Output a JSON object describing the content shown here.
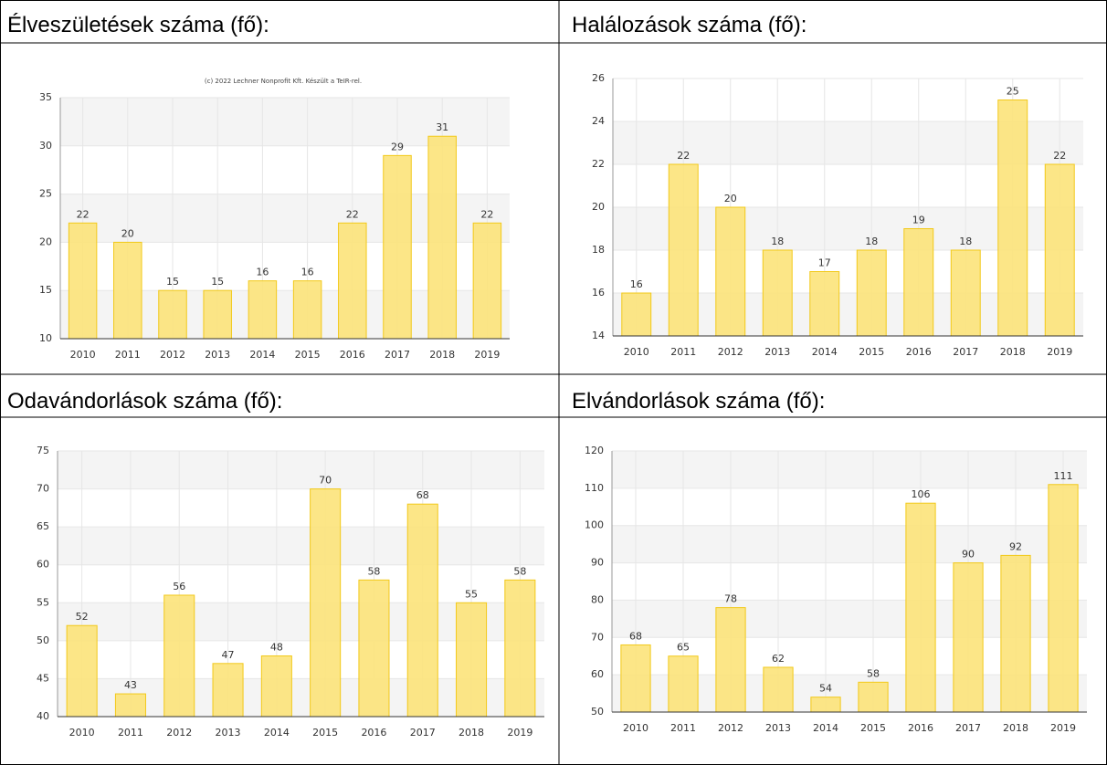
{
  "chart_data": [
    {
      "type": "bar",
      "title": "Élveszületések száma (fő):",
      "annotation": "(c) 2022 Lechner Nonprofit Kft. Készült a TeIR-rel.",
      "categories": [
        "2010",
        "2011",
        "2012",
        "2013",
        "2014",
        "2015",
        "2016",
        "2017",
        "2018",
        "2019"
      ],
      "values": [
        22,
        20,
        15,
        15,
        16,
        16,
        22,
        29,
        31,
        22
      ],
      "color": "#fce37a",
      "edge_color": "#f2c91a",
      "ylim": [
        10,
        35
      ],
      "yticks": [
        10,
        15,
        20,
        25,
        30,
        35
      ],
      "grid": true
    },
    {
      "type": "bar",
      "title": "Halálozások száma (fő):",
      "categories": [
        "2010",
        "2011",
        "2012",
        "2013",
        "2014",
        "2015",
        "2016",
        "2017",
        "2018",
        "2019"
      ],
      "values": [
        16,
        22,
        20,
        18,
        17,
        18,
        19,
        18,
        25,
        22
      ],
      "color": "#fce37a",
      "edge_color": "#f2c91a",
      "ylim": [
        14,
        26
      ],
      "yticks": [
        14,
        16,
        18,
        20,
        22,
        24,
        26
      ],
      "grid": true
    },
    {
      "type": "bar",
      "title": "Odavándorlások száma (fő):",
      "categories": [
        "2010",
        "2011",
        "2012",
        "2013",
        "2014",
        "2015",
        "2016",
        "2017",
        "2018",
        "2019"
      ],
      "values": [
        52,
        43,
        56,
        47,
        48,
        70,
        58,
        68,
        55,
        58
      ],
      "color": "#fce37a",
      "edge_color": "#f2c91a",
      "ylim": [
        40,
        75
      ],
      "yticks": [
        40,
        45,
        50,
        55,
        60,
        65,
        70,
        75
      ],
      "grid": true
    },
    {
      "type": "bar",
      "title": "Elvándorlások száma (fő):",
      "categories": [
        "2010",
        "2011",
        "2012",
        "2013",
        "2014",
        "2015",
        "2016",
        "2017",
        "2018",
        "2019"
      ],
      "values": [
        68,
        65,
        78,
        62,
        54,
        58,
        106,
        90,
        92,
        111
      ],
      "color": "#fce37a",
      "edge_color": "#f2c91a",
      "ylim": [
        50,
        120
      ],
      "yticks": [
        50,
        60,
        70,
        80,
        90,
        100,
        110,
        120
      ],
      "grid": true
    }
  ]
}
